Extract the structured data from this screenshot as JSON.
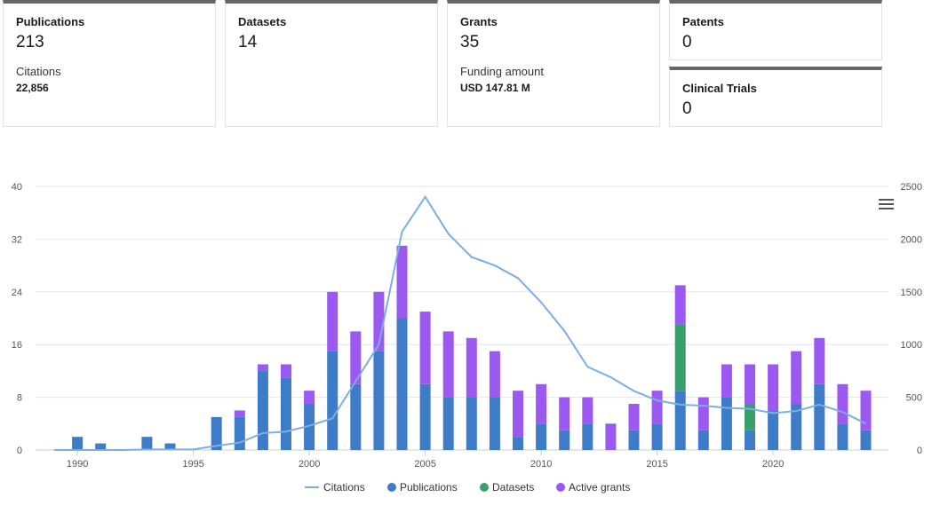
{
  "summary": {
    "publications": {
      "label": "Publications",
      "value": "213",
      "sublabel": "Citations",
      "subvalue": "22,856"
    },
    "datasets": {
      "label": "Datasets",
      "value": "14"
    },
    "grants": {
      "label": "Grants",
      "value": "35",
      "sublabel": "Funding amount",
      "subvalue": "USD 147.81 M"
    },
    "patents": {
      "label": "Patents",
      "value": "0"
    },
    "clinical_trials": {
      "label": "Clinical Trials",
      "value": "0"
    }
  },
  "colors": {
    "publications": "#3f7cc7",
    "datasets": "#3aa06b",
    "grants": "#9b59f2",
    "citations": "#7eaee0",
    "grid": "#e6e6e6",
    "axis": "#cccccc"
  },
  "menu": {
    "icon": "hamburger-menu-icon"
  },
  "chart_data": {
    "type": "bar",
    "stacked": true,
    "years": [
      1989,
      1990,
      1991,
      1992,
      1993,
      1994,
      1995,
      1996,
      1997,
      1998,
      1999,
      2000,
      2001,
      2002,
      2003,
      2004,
      2005,
      2006,
      2007,
      2008,
      2009,
      2010,
      2011,
      2012,
      2013,
      2014,
      2015,
      2016,
      2017,
      2018,
      2019,
      2020,
      2021,
      2022,
      2023,
      2024
    ],
    "series": [
      {
        "name": "Publications",
        "key": "publications",
        "axis": "left",
        "values": [
          0,
          2,
          1,
          0,
          2,
          1,
          0,
          5,
          5,
          12,
          11,
          7,
          15,
          10,
          15,
          20,
          10,
          8,
          8,
          8,
          2,
          4,
          3,
          4,
          0,
          3,
          4,
          9,
          3,
          8,
          3,
          6,
          7,
          10,
          4,
          3
        ]
      },
      {
        "name": "Datasets",
        "key": "datasets",
        "axis": "left",
        "values": [
          0,
          0,
          0,
          0,
          0,
          0,
          0,
          0,
          0,
          0,
          0,
          0,
          0,
          0,
          0,
          0,
          0,
          0,
          0,
          0,
          0,
          0,
          0,
          0,
          0,
          0,
          0,
          10,
          0,
          0,
          4,
          0,
          0,
          0,
          0,
          0
        ]
      },
      {
        "name": "Active grants",
        "key": "grants",
        "axis": "left",
        "values": [
          0,
          0,
          0,
          0,
          0,
          0,
          0,
          0,
          1,
          1,
          2,
          2,
          9,
          8,
          9,
          11,
          11,
          10,
          9,
          7,
          7,
          6,
          5,
          4,
          4,
          4,
          5,
          6,
          5,
          5,
          6,
          7,
          8,
          7,
          6,
          6
        ]
      },
      {
        "name": "Citations",
        "key": "citations",
        "axis": "right",
        "type": "line",
        "values": [
          0,
          0,
          0,
          0,
          5,
          5,
          5,
          40,
          70,
          160,
          175,
          230,
          300,
          650,
          1000,
          2070,
          2400,
          2050,
          1830,
          1750,
          1630,
          1400,
          1130,
          790,
          690,
          560,
          470,
          430,
          420,
          400,
          390,
          350,
          370,
          430,
          360,
          250
        ]
      }
    ],
    "xticks": [
      1990,
      1995,
      2000,
      2005,
      2010,
      2015,
      2020
    ],
    "yleft": {
      "ticks": [
        0,
        8,
        16,
        24,
        32,
        40
      ],
      "range": [
        0,
        40
      ]
    },
    "yright": {
      "ticks": [
        0,
        500,
        1000,
        1500,
        2000,
        2500
      ],
      "range": [
        0,
        2500
      ]
    },
    "legend": [
      "Citations",
      "Publications",
      "Datasets",
      "Active grants"
    ],
    "legend_position": "bottom"
  }
}
